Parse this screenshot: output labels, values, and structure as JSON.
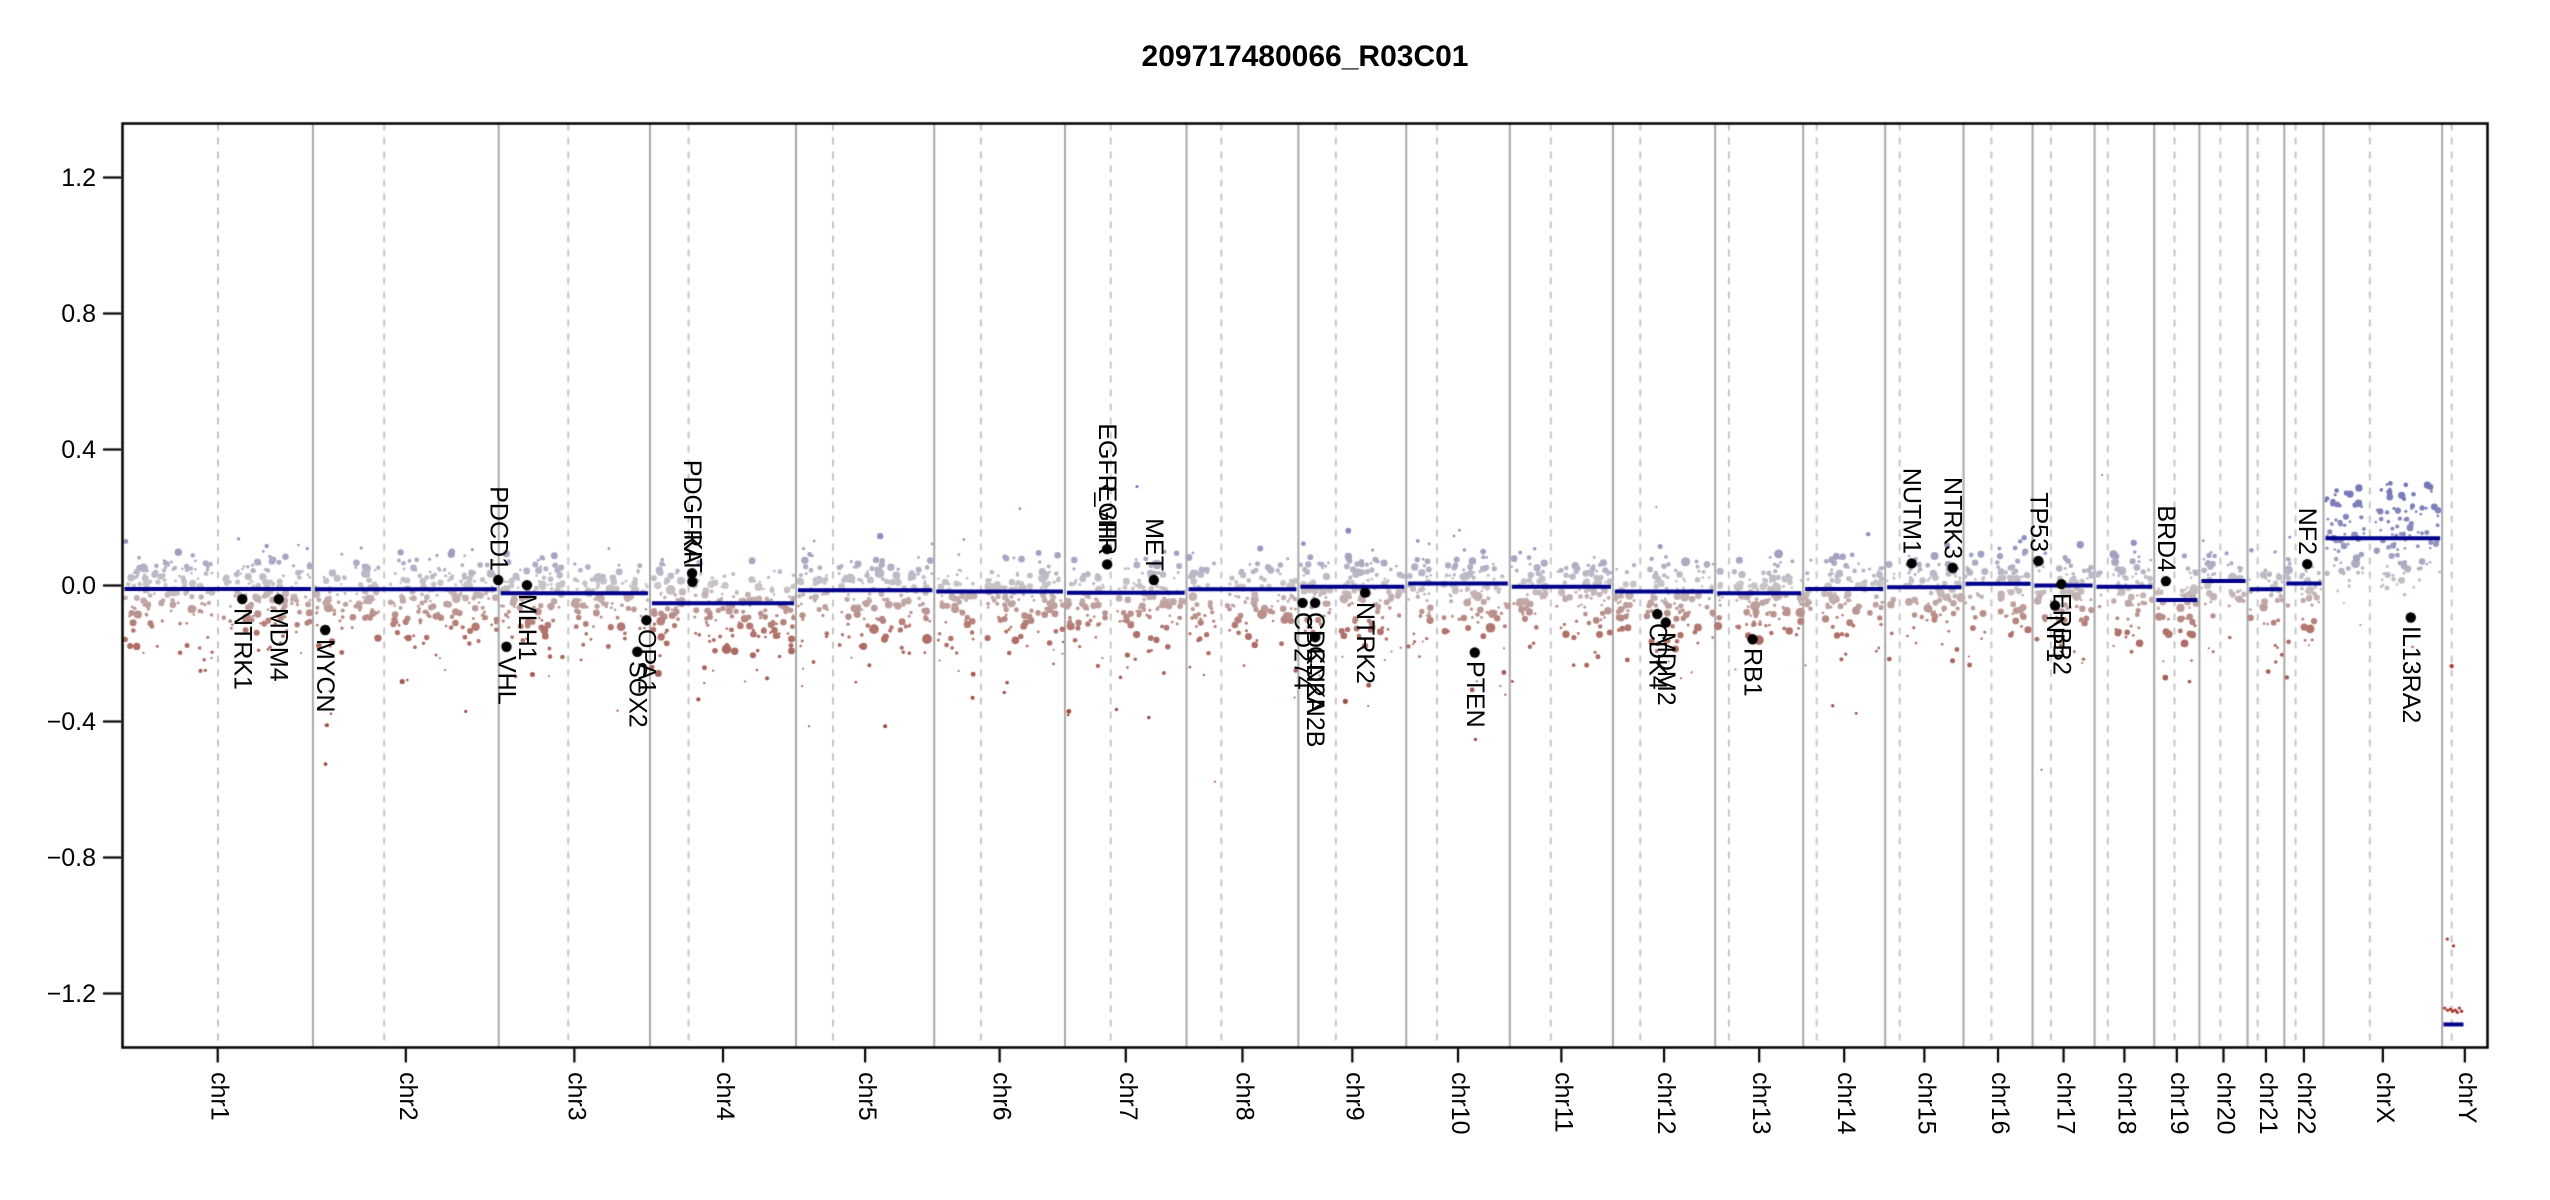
{
  "title": "209717480066_R03C01",
  "y_axis": {
    "tick_labels": [
      "1.2",
      "0.8",
      "0.4",
      "0.0",
      "−0.4",
      "−0.8",
      "−1.2"
    ],
    "tick_values": [
      1.2,
      0.8,
      0.4,
      0.0,
      -0.4,
      -0.8,
      -1.2
    ]
  },
  "colors": {
    "segment": "#00008B",
    "gain_point": "#8f92c0",
    "deep_gain_point": "#696eb4",
    "neutral_point": "#c9c6c9",
    "loss_point": "#b2746b",
    "deep_loss_point": "#9c4a42",
    "chry_point": "#a83a30",
    "gene_dot": "#000000",
    "chromosome_boundary": "#a8a8a8",
    "centromere_line": "#c6c6c6",
    "axis": "#000000"
  },
  "chart_data": {
    "type": "scatter",
    "title": "209717480066_R03C01",
    "subtitle": "",
    "xlabel": "",
    "ylabel": "",
    "ylim": [
      -1.36,
      1.36
    ],
    "y_ticks": [
      1.2,
      0.8,
      0.4,
      0.0,
      -0.4,
      -0.8,
      -1.2
    ],
    "grid": "off",
    "legend": "none",
    "x_categories": [
      "chr1",
      "chr2",
      "chr3",
      "chr4",
      "chr5",
      "chr6",
      "chr7",
      "chr8",
      "chr9",
      "chr10",
      "chr11",
      "chr12",
      "chr13",
      "chr14",
      "chr15",
      "chr16",
      "chr17",
      "chr18",
      "chr19",
      "chr20",
      "chr21",
      "chr22",
      "chrX",
      "chrY"
    ],
    "chromosomes": [
      {
        "name": "chr1",
        "length_mb": 249.25,
        "centromere_mb": 125.0,
        "segment_log2": -0.01
      },
      {
        "name": "chr2",
        "length_mb": 243.2,
        "centromere_mb": 93.3,
        "segment_log2": -0.011
      },
      {
        "name": "chr3",
        "length_mb": 198.02,
        "centromere_mb": 91.0,
        "segment_log2": -0.023
      },
      {
        "name": "chr4",
        "length_mb": 191.15,
        "centromere_mb": 50.4,
        "segment_log2": -0.052
      },
      {
        "name": "chr5",
        "length_mb": 180.92,
        "centromere_mb": 48.4,
        "segment_log2": -0.014
      },
      {
        "name": "chr6",
        "length_mb": 171.12,
        "centromere_mb": 61.0,
        "segment_log2": -0.018
      },
      {
        "name": "chr7",
        "length_mb": 159.14,
        "centromere_mb": 59.9,
        "segment_log2": -0.021
      },
      {
        "name": "chr8",
        "length_mb": 146.36,
        "centromere_mb": 45.6,
        "segment_log2": -0.011
      },
      {
        "name": "chr9",
        "length_mb": 141.21,
        "centromere_mb": 49.0,
        "segment_log2": -0.004
      },
      {
        "name": "chr10",
        "length_mb": 135.53,
        "centromere_mb": 40.2,
        "segment_log2": 0.006
      },
      {
        "name": "chr11",
        "length_mb": 135.01,
        "centromere_mb": 53.7,
        "segment_log2": -0.004
      },
      {
        "name": "chr12",
        "length_mb": 133.85,
        "centromere_mb": 35.8,
        "segment_log2": -0.018
      },
      {
        "name": "chr13",
        "length_mb": 115.17,
        "centromere_mb": 17.9,
        "segment_log2": -0.023
      },
      {
        "name": "chr14",
        "length_mb": 107.35,
        "centromere_mb": 17.6,
        "segment_log2": -0.01
      },
      {
        "name": "chr15",
        "length_mb": 102.53,
        "centromere_mb": 19.0,
        "segment_log2": -0.005
      },
      {
        "name": "chr16",
        "length_mb": 90.35,
        "centromere_mb": 36.6,
        "segment_log2": 0.005
      },
      {
        "name": "chr17",
        "length_mb": 81.2,
        "centromere_mb": 24.0,
        "segment_log2": 0.0
      },
      {
        "name": "chr18",
        "length_mb": 78.08,
        "centromere_mb": 17.2,
        "segment_log2": -0.004
      },
      {
        "name": "chr19",
        "length_mb": 59.13,
        "centromere_mb": 26.5,
        "segment_log2": -0.043
      },
      {
        "name": "chr20",
        "length_mb": 63.03,
        "centromere_mb": 27.5,
        "segment_log2": 0.013
      },
      {
        "name": "chr21",
        "length_mb": 48.13,
        "centromere_mb": 13.2,
        "segment_log2": -0.011
      },
      {
        "name": "chr22",
        "length_mb": 51.3,
        "centromere_mb": 14.7,
        "segment_log2": 0.006
      },
      {
        "name": "chrX",
        "length_mb": 155.27,
        "centromere_mb": 60.6,
        "segment_log2": 0.139
      },
      {
        "name": "chrY",
        "length_mb": 59.37,
        "centromere_mb": 12.5,
        "segment_log2": -1.291,
        "segment_span_frac": [
          0.03,
          0.47
        ]
      }
    ],
    "genes": [
      {
        "label": "NTRK1",
        "chrom": "chr1",
        "pos_mb": 156.8,
        "log2": -0.04,
        "label_side": "below"
      },
      {
        "label": "MDM4",
        "chrom": "chr1",
        "pos_mb": 204.5,
        "log2": -0.04,
        "label_side": "below"
      },
      {
        "label": "MYCN",
        "chrom": "chr2",
        "pos_mb": 16.1,
        "log2": -0.131,
        "label_side": "below"
      },
      {
        "label": "PDCD1",
        "chrom": "chr2",
        "pos_mb": 242.6,
        "log2": 0.016,
        "label_side": "above"
      },
      {
        "label": "VHL",
        "chrom": "chr3",
        "pos_mb": 10.2,
        "log2": -0.18,
        "label_side": "below"
      },
      {
        "label": "MLH1",
        "chrom": "chr3",
        "pos_mb": 37.0,
        "log2": 0.001,
        "label_side": "below"
      },
      {
        "label": "SOX2",
        "chrom": "chr3",
        "pos_mb": 181.4,
        "log2": -0.195,
        "label_side": "below"
      },
      {
        "label": "OPA1",
        "chrom": "chr3",
        "pos_mb": 193.3,
        "log2": -0.102,
        "label_side": "below"
      },
      {
        "label": "PDGFRA",
        "chrom": "chr4",
        "pos_mb": 55.1,
        "log2": 0.036,
        "label_side": "above"
      },
      {
        "label": "KIT",
        "chrom": "chr4",
        "pos_mb": 55.5,
        "log2": 0.011,
        "label_side": "above"
      },
      {
        "label": "EGFR_vIII",
        "chrom": "chr7",
        "pos_mb": 55.0,
        "log2": 0.107,
        "label_side": "above"
      },
      {
        "label": "EGFR",
        "chrom": "chr7",
        "pos_mb": 55.2,
        "log2": 0.062,
        "label_side": "above"
      },
      {
        "label": "MET",
        "chrom": "chr7",
        "pos_mb": 116.3,
        "log2": 0.016,
        "label_side": "above"
      },
      {
        "label": "CD274",
        "chrom": "chr9",
        "pos_mb": 5.5,
        "log2": -0.051,
        "label_side": "below"
      },
      {
        "label": "CDKN2A",
        "chrom": "chr9",
        "pos_mb": 21.97,
        "log2": -0.051,
        "label_side": "below"
      },
      {
        "label": "CDKN2B",
        "chrom": "chr9",
        "pos_mb": 22.0,
        "log2": -0.152,
        "label_side": "below"
      },
      {
        "label": "NTRK2",
        "chrom": "chr9",
        "pos_mb": 87.3,
        "log2": -0.021,
        "label_side": "below"
      },
      {
        "label": "PTEN",
        "chrom": "chr10",
        "pos_mb": 89.7,
        "log2": -0.197,
        "label_side": "below"
      },
      {
        "label": "CDK4",
        "chrom": "chr12",
        "pos_mb": 58.1,
        "log2": -0.084,
        "label_side": "below"
      },
      {
        "label": "MDM2",
        "chrom": "chr12",
        "pos_mb": 69.2,
        "log2": -0.109,
        "label_side": "below"
      },
      {
        "label": "RB1",
        "chrom": "chr13",
        "pos_mb": 48.9,
        "log2": -0.158,
        "label_side": "below"
      },
      {
        "label": "NUTM1",
        "chrom": "chr15",
        "pos_mb": 34.6,
        "log2": 0.065,
        "label_side": "above"
      },
      {
        "label": "NTRK3",
        "chrom": "chr15",
        "pos_mb": 88.4,
        "log2": 0.052,
        "label_side": "above"
      },
      {
        "label": "TP53",
        "chrom": "chr17",
        "pos_mb": 7.6,
        "log2": 0.072,
        "label_side": "above"
      },
      {
        "label": "NF1",
        "chrom": "chr17",
        "pos_mb": 29.5,
        "log2": -0.059,
        "label_side": "below"
      },
      {
        "label": "ERBB2",
        "chrom": "chr17",
        "pos_mb": 37.8,
        "log2": 0.004,
        "label_side": "below"
      },
      {
        "label": "BRD4",
        "chrom": "chr19",
        "pos_mb": 15.3,
        "log2": 0.013,
        "label_side": "above"
      },
      {
        "label": "NF2",
        "chrom": "chr22",
        "pos_mb": 30.0,
        "log2": 0.063,
        "label_side": "above"
      },
      {
        "label": "IL13RA2",
        "chrom": "chrX",
        "pos_mb": 114.2,
        "log2": -0.094,
        "label_side": "below"
      }
    ],
    "chrY_points": [
      {
        "frac": 0.114,
        "log2": -1.04
      },
      {
        "frac": 0.25,
        "log2": -1.06
      },
      {
        "frac": 0.21,
        "log2": -0.237
      },
      {
        "frac": 0.055,
        "log2": -1.243
      },
      {
        "frac": 0.12,
        "log2": -1.249
      },
      {
        "frac": 0.185,
        "log2": -1.246
      },
      {
        "frac": 0.23,
        "log2": -1.252
      },
      {
        "frac": 0.29,
        "log2": -1.249
      },
      {
        "frac": 0.335,
        "log2": -1.255
      },
      {
        "frac": 0.38,
        "log2": -1.243
      },
      {
        "frac": 0.43,
        "log2": -1.252
      }
    ]
  }
}
